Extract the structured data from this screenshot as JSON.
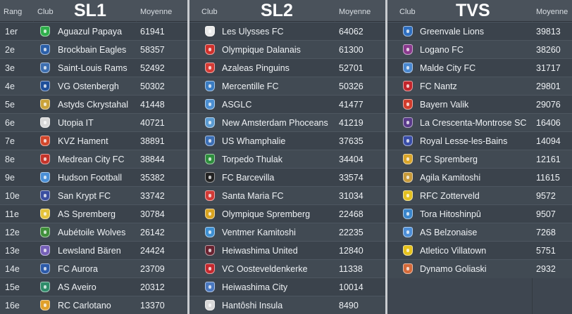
{
  "header": {
    "rank_col": "Rang",
    "club_col": "Club",
    "avg_col": "Moyenne"
  },
  "leagues": [
    {
      "title": "SL1",
      "has_rank": true,
      "rows": [
        {
          "rank": "1er",
          "club": "Aguazul Papaya",
          "avg": "61941",
          "color": "#2fae4b"
        },
        {
          "rank": "2e",
          "club": "Brockbain Eagles",
          "avg": "58357",
          "color": "#2b5fa8"
        },
        {
          "rank": "3e",
          "club": "Saint-Louis Rams",
          "avg": "52492",
          "color": "#3e6fb0"
        },
        {
          "rank": "4e",
          "club": "VG Ostenbergh",
          "avg": "50302",
          "color": "#1f4f9a"
        },
        {
          "rank": "5e",
          "club": "Astyds Ckrystahal",
          "avg": "41448",
          "color": "#c9a23a"
        },
        {
          "rank": "6e",
          "club": "Utopia IT",
          "avg": "40721",
          "color": "#d8d8d8"
        },
        {
          "rank": "7e",
          "club": "KVZ Hament",
          "avg": "38891",
          "color": "#d2472c"
        },
        {
          "rank": "8e",
          "club": "Medrean City FC",
          "avg": "38844",
          "color": "#c4342a"
        },
        {
          "rank": "9e",
          "club": "Hudson Football",
          "avg": "35382",
          "color": "#4a8fd6"
        },
        {
          "rank": "10e",
          "club": "San Krypt FC",
          "avg": "33742",
          "color": "#3a4ea0"
        },
        {
          "rank": "11e",
          "club": "AS Spremberg",
          "avg": "30784",
          "color": "#e3c23b"
        },
        {
          "rank": "12e",
          "club": "Aubétoile Wolves",
          "avg": "26142",
          "color": "#3f8f3a"
        },
        {
          "rank": "13e",
          "club": "Lewsland Bären",
          "avg": "24424",
          "color": "#7660b8"
        },
        {
          "rank": "14e",
          "club": "FC Aurora",
          "avg": "23709",
          "color": "#2c5aa8"
        },
        {
          "rank": "15e",
          "club": "AS Aveiro",
          "avg": "20312",
          "color": "#2f8c6a"
        },
        {
          "rank": "16e",
          "club": "RC Carlotano",
          "avg": "13370",
          "color": "#e0a02a"
        }
      ]
    },
    {
      "title": "SL2",
      "has_rank": false,
      "rows": [
        {
          "club": "Les Ulysses FC",
          "avg": "64062",
          "color": "#e9e9e9"
        },
        {
          "club": "Olympique Dalanais",
          "avg": "61300",
          "color": "#d0302b"
        },
        {
          "club": "Azaleas Pinguins",
          "avg": "52701",
          "color": "#d63b35"
        },
        {
          "club": "Mercentille FC",
          "avg": "50326",
          "color": "#3a7cc2"
        },
        {
          "club": "ASGLC",
          "avg": "41477",
          "color": "#4b8ed0"
        },
        {
          "club": "New Amsterdam Phoceans",
          "avg": "41219",
          "color": "#5a9bd2"
        },
        {
          "club": "US Whamphalie",
          "avg": "37635",
          "color": "#3c6fb5"
        },
        {
          "club": "Torpedo Thulak",
          "avg": "34404",
          "color": "#2e8e3d"
        },
        {
          "club": "FC Barcevilla",
          "avg": "33574",
          "color": "#222222"
        },
        {
          "club": "Santa Maria FC",
          "avg": "31034",
          "color": "#d23a36"
        },
        {
          "club": "Olympique Spremberg",
          "avg": "22468",
          "color": "#d9a31f"
        },
        {
          "club": "Ventmer Kamitoshi",
          "avg": "22235",
          "color": "#3d8fd2"
        },
        {
          "club": "Heiwashima United",
          "avg": "12840",
          "color": "#6a2331"
        },
        {
          "club": "VC Oosteveldenkerke",
          "avg": "11338",
          "color": "#c5282e"
        },
        {
          "club": "Heiwashima City",
          "avg": "10014",
          "color": "#4a78c0"
        },
        {
          "club": "Hantôshi Insula",
          "avg": "8490",
          "color": "#d9d9d9"
        }
      ]
    },
    {
      "title": "TVS",
      "has_rank": false,
      "rows": [
        {
          "club": "Greenvale Lions",
          "avg": "39813",
          "color": "#2f6fc0"
        },
        {
          "club": "Logano FC",
          "avg": "38260",
          "color": "#8a3a8e"
        },
        {
          "club": "Malde City FC",
          "avg": "31717",
          "color": "#4a88d0"
        },
        {
          "club": "FC Nantz",
          "avg": "29801",
          "color": "#c2262c"
        },
        {
          "club": "Bayern Valik",
          "avg": "29076",
          "color": "#d23c2c"
        },
        {
          "club": "La Crescenta-Montrose SC",
          "avg": "16406",
          "color": "#5a3a8a"
        },
        {
          "club": "Royal Lesse-les-Bains",
          "avg": "14094",
          "color": "#3a4ea8"
        },
        {
          "club": "FC Spremberg",
          "avg": "12161",
          "color": "#d9a52a"
        },
        {
          "club": "Agila Kamitoshi",
          "avg": "11615",
          "color": "#c89a3a"
        },
        {
          "club": "RFC Zotterveld",
          "avg": "9572",
          "color": "#e3c020"
        },
        {
          "club": "Tora Hitoshinpû",
          "avg": "9507",
          "color": "#3a86cc"
        },
        {
          "club": "AS Belzonaise",
          "avg": "7268",
          "color": "#4d8fd8"
        },
        {
          "club": "Atletico Villatown",
          "avg": "5751",
          "color": "#e6c21c"
        },
        {
          "club": "Dynamo Goliaski",
          "avg": "2932",
          "color": "#d46a3a"
        }
      ]
    }
  ]
}
